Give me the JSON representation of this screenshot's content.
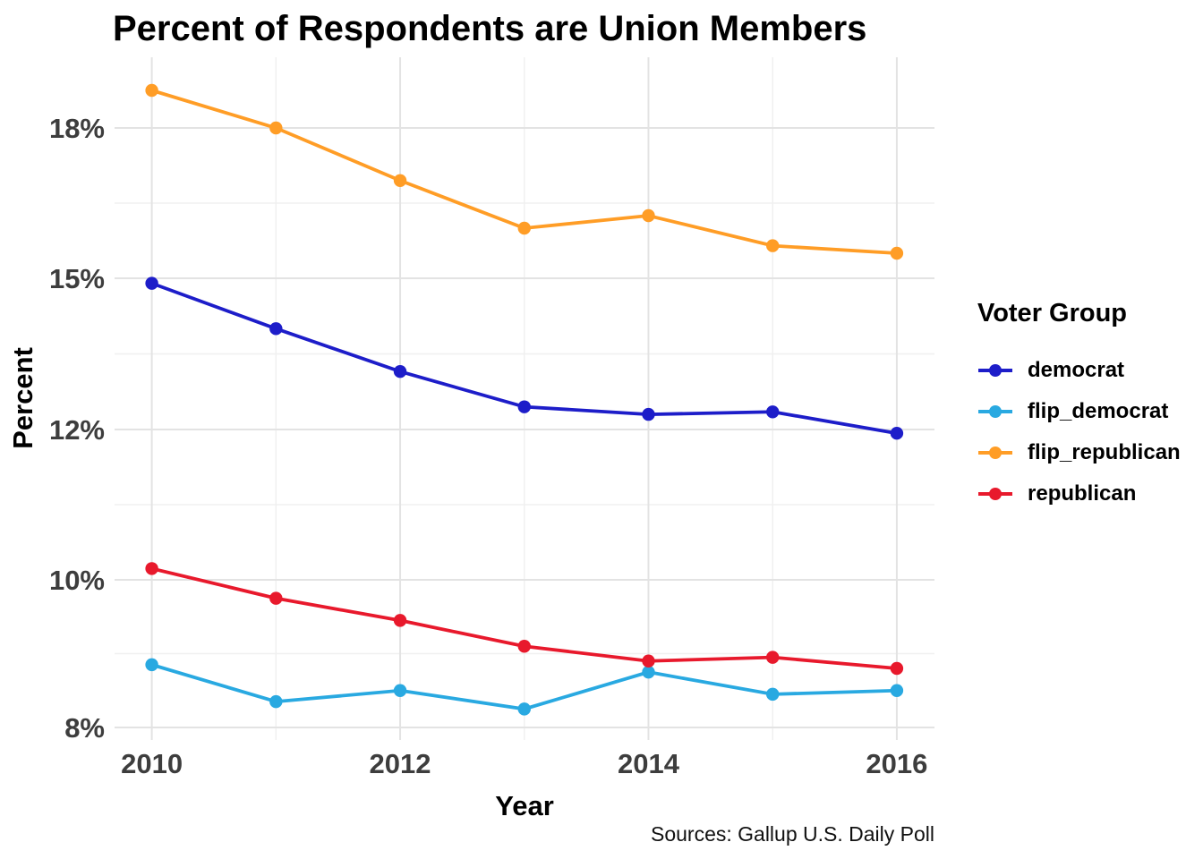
{
  "chart_data": {
    "type": "line",
    "title": "Percent of Respondents are Union Members",
    "xlabel": "Year",
    "ylabel": "Percent",
    "caption": "Sources: Gallup U.S. Daily Poll",
    "legend": {
      "title": "Voter Group",
      "position": "right"
    },
    "x": [
      2010,
      2011,
      2012,
      2013,
      2014,
      2015,
      2016
    ],
    "x_tick_labels": [
      "2010",
      "2012",
      "2014",
      "2016"
    ],
    "y_ticks": [
      {
        "value": 8,
        "label": "8%"
      },
      {
        "value": 10,
        "label": "10%"
      },
      {
        "value": 12,
        "label": "12%"
      },
      {
        "value": 15,
        "label": "15%"
      },
      {
        "value": 18,
        "label": "18%"
      }
    ],
    "grid": true,
    "series": [
      {
        "name": "democrat",
        "color": "#1D1DC9",
        "values": [
          14.9,
          14.0,
          13.15,
          12.45,
          12.3,
          12.35,
          11.95
        ]
      },
      {
        "name": "flip_democrat",
        "color": "#29A9E1",
        "values": [
          8.85,
          8.35,
          8.5,
          8.25,
          8.75,
          8.45,
          8.5
        ]
      },
      {
        "name": "flip_republican",
        "color": "#FF9D26",
        "values": [
          18.75,
          18.0,
          16.95,
          16.0,
          16.25,
          15.65,
          15.5
        ]
      },
      {
        "name": "republican",
        "color": "#E8192C",
        "values": [
          10.15,
          9.75,
          9.45,
          9.1,
          8.9,
          8.95,
          8.8
        ]
      }
    ]
  },
  "colors": {
    "grid_major": "#E3E3E3",
    "grid_minor": "#F0F0F0",
    "tick_text": "#3D3D3D"
  }
}
